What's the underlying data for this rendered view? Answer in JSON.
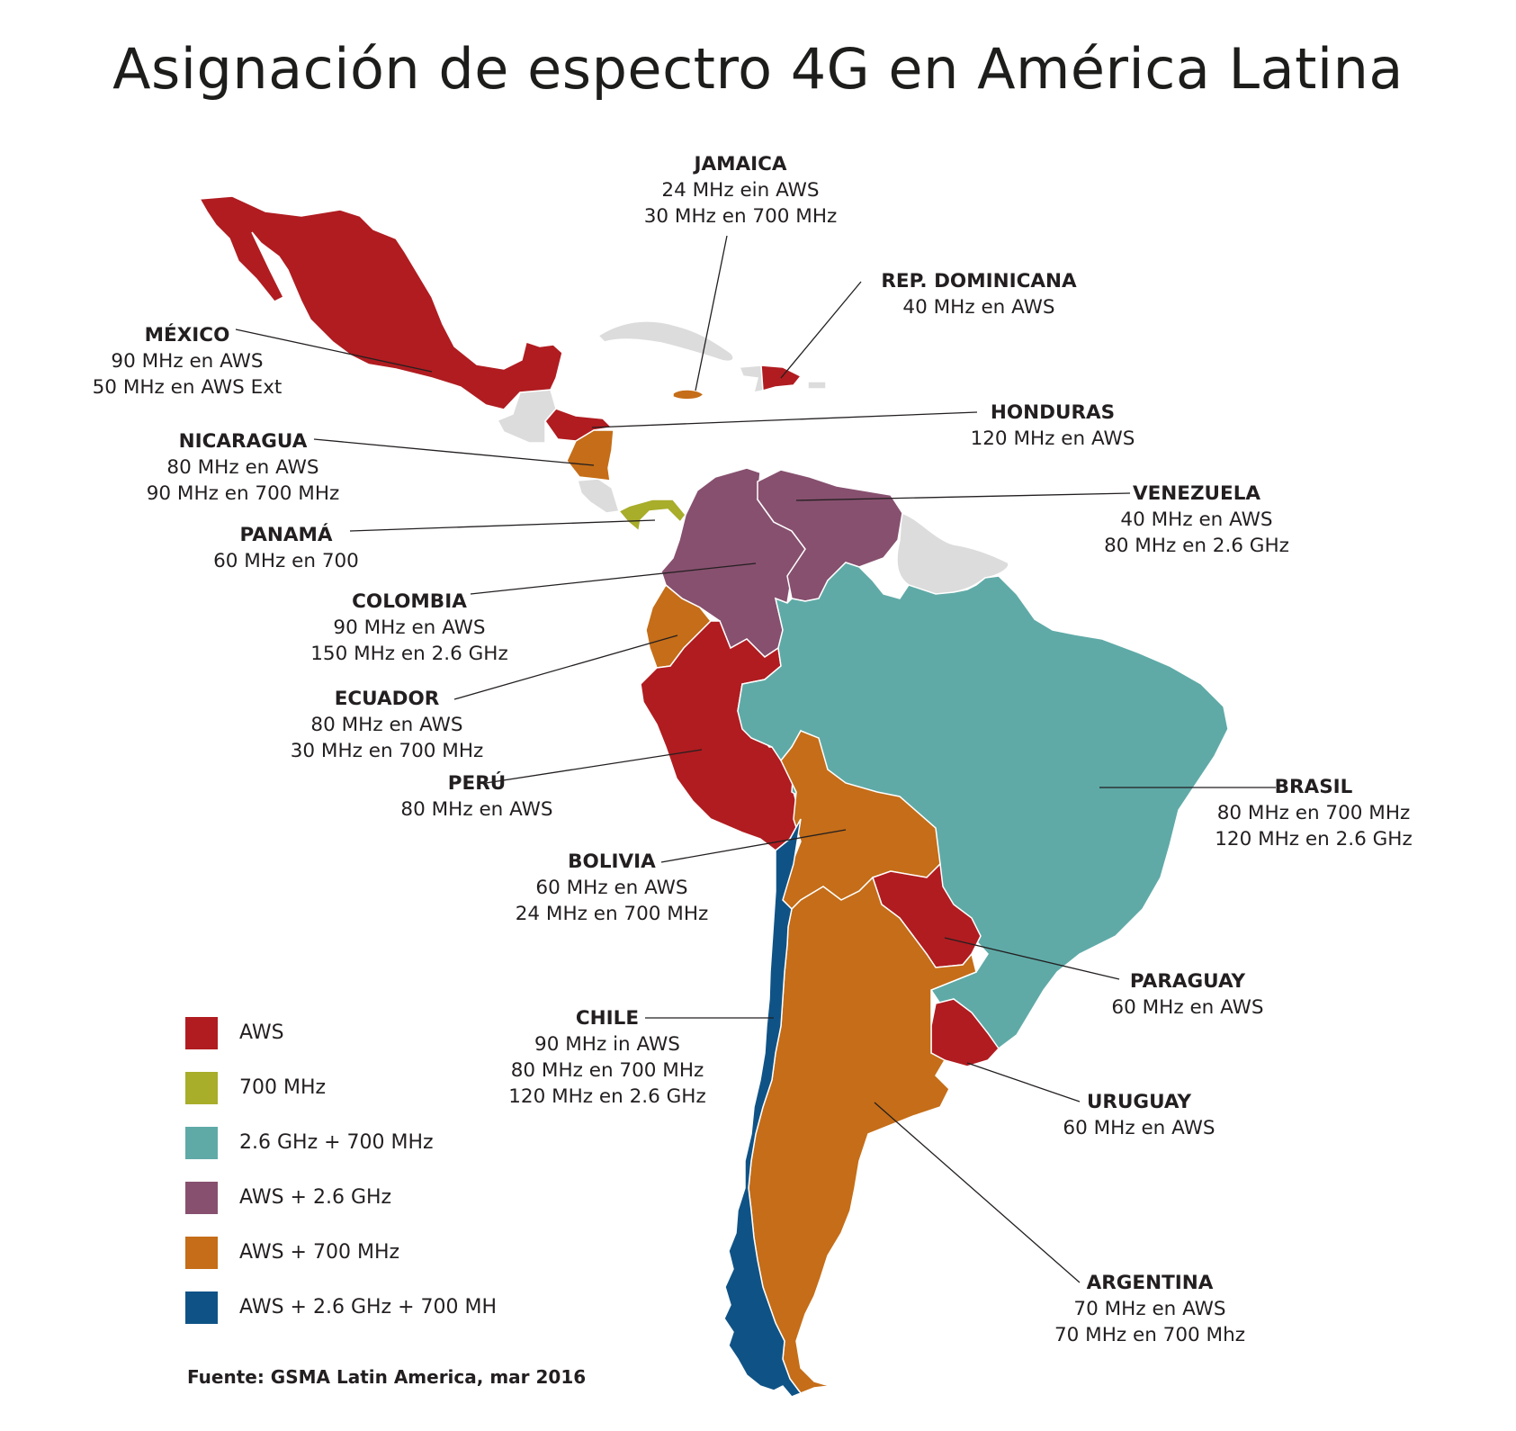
{
  "title": "Asignación de espectro 4G en América Latina",
  "source": "Fuente: GSMA Latin America, mar 2016",
  "colors": {
    "aws": "#b01c20",
    "700mhz": "#a8ad2a",
    "2.6ghz+700mhz": "#5faaa7",
    "aws+2.6ghz": "#87506f",
    "aws+700mhz": "#c56d18",
    "aws+2.6ghz+700mhz": "#0f5386",
    "no_data": "#dcdcdc"
  },
  "legend": [
    {
      "label": "AWS",
      "color": "#b01c20"
    },
    {
      "label": "700 MHz",
      "color": "#a8ad2a"
    },
    {
      "label": "2.6 GHz + 700 MHz",
      "color": "#5faaa7"
    },
    {
      "label": "AWS + 2.6 GHz",
      "color": "#87506f"
    },
    {
      "label": "AWS + 700 MHz",
      "color": "#c56d18"
    },
    {
      "label": "AWS + 2.6 GHz + 700 MH",
      "color": "#0f5386"
    }
  ],
  "countries": {
    "jamaica": {
      "name": "JAMAICA",
      "lines": [
        "24 MHz ein AWS",
        "30 MHz en 700 MHz"
      ]
    },
    "rep_dominicana": {
      "name": "REP. DOMINICANA",
      "lines": [
        "40 MHz en AWS"
      ]
    },
    "mexico": {
      "name": "MÉXICO",
      "lines": [
        "90 MHz en AWS",
        "50 MHz en AWS Ext"
      ]
    },
    "honduras": {
      "name": "HONDURAS",
      "lines": [
        "120 MHz en AWS"
      ]
    },
    "nicaragua": {
      "name": "NICARAGUA",
      "lines": [
        "80 MHz en AWS",
        "90 MHz en 700 MHz"
      ]
    },
    "venezuela": {
      "name": "VENEZUELA",
      "lines": [
        "40 MHz en AWS",
        "80 MHz en 2.6 GHz"
      ]
    },
    "panama": {
      "name": "PANAMÁ",
      "lines": [
        "60 MHz en 700"
      ]
    },
    "colombia": {
      "name": "COLOMBIA",
      "lines": [
        "90 MHz en AWS",
        "150 MHz en 2.6 GHz"
      ]
    },
    "ecuador": {
      "name": "ECUADOR",
      "lines": [
        "80 MHz en AWS",
        "30 MHz en 700 MHz"
      ]
    },
    "peru": {
      "name": "PERÚ",
      "lines": [
        "80 MHz en AWS"
      ]
    },
    "brasil": {
      "name": "BRASIL",
      "lines": [
        "80 MHz en 700 MHz",
        "120 MHz en 2.6 GHz"
      ]
    },
    "bolivia": {
      "name": "BOLIVIA",
      "lines": [
        "60 MHz en AWS",
        "24 MHz en 700 MHz"
      ]
    },
    "paraguay": {
      "name": "PARAGUAY",
      "lines": [
        "60 MHz en AWS"
      ]
    },
    "chile": {
      "name": "CHILE",
      "lines": [
        "90 MHz in AWS",
        "80 MHz en 700 MHz",
        "120 MHz en 2.6 GHz"
      ]
    },
    "uruguay": {
      "name": "URUGUAY",
      "lines": [
        "60 MHz en AWS"
      ]
    },
    "argentina": {
      "name": "ARGENTINA",
      "lines": [
        "70 MHz en AWS",
        "70 MHz en 700 Mhz"
      ]
    }
  }
}
